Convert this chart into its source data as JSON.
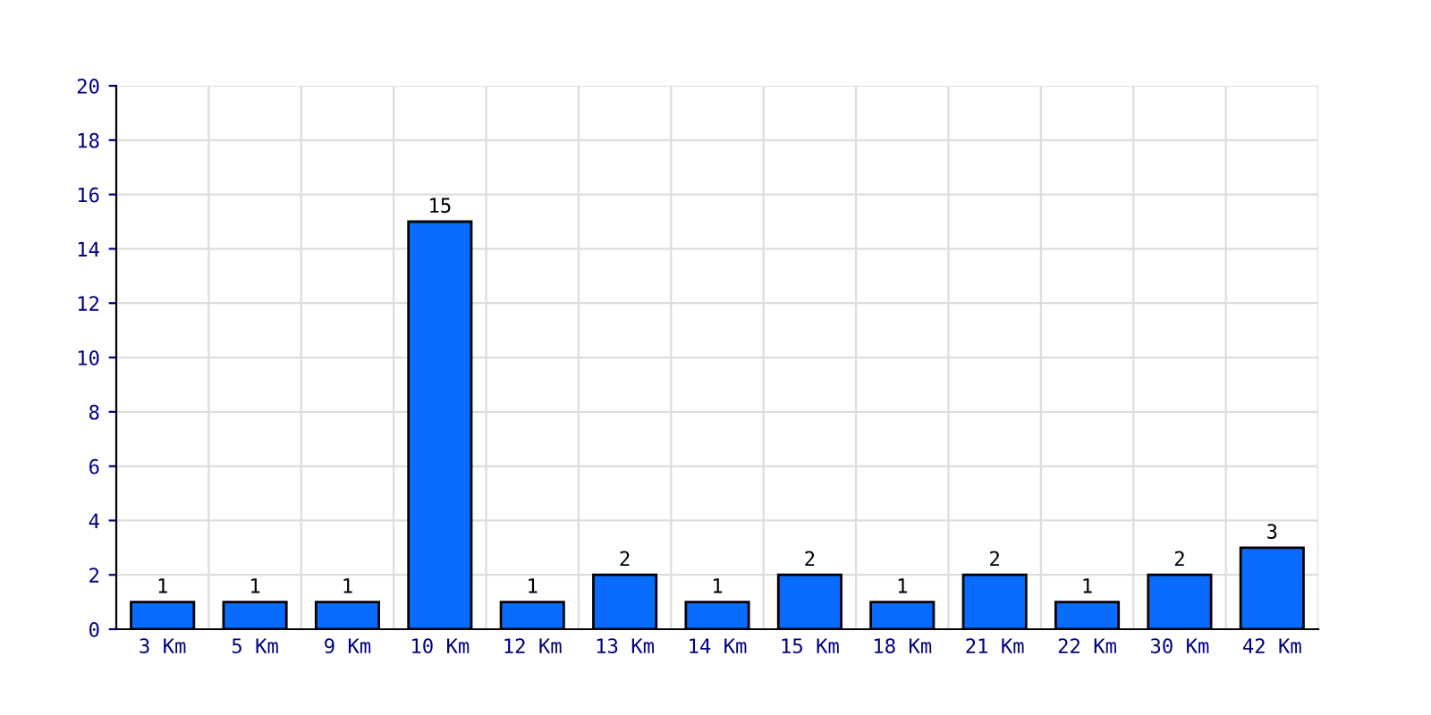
{
  "chart_data": {
    "type": "bar",
    "categories": [
      "3 Km",
      "5 Km",
      "9 Km",
      "10 Km",
      "12 Km",
      "13 Km",
      "14 Km",
      "15 Km",
      "18 Km",
      "21 Km",
      "22 Km",
      "30 Km",
      "42 Km"
    ],
    "values": [
      1,
      1,
      1,
      15,
      1,
      2,
      1,
      2,
      1,
      2,
      1,
      2,
      3
    ],
    "color": "#0a6cff",
    "ylim": [
      0,
      20
    ],
    "yticks": [
      0,
      2,
      4,
      6,
      8,
      10,
      12,
      14,
      16,
      18,
      20
    ],
    "grid": true,
    "data_labels": true
  }
}
